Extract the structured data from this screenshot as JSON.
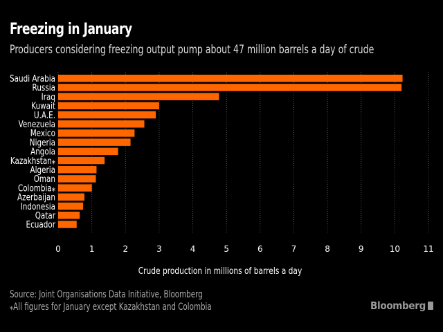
{
  "header": {
    "title": "Freezing in January",
    "subtitle": "Producers considering freezing output pump about 47 million barrels a day of crude"
  },
  "footer": {
    "source": "Source: Joint Organisations Data Initiative, Bloomberg",
    "note": "⁎All figures for January except Kazakhstan and Colombia",
    "brand": "Bloomberg"
  },
  "colors": {
    "bar": "#ff6600",
    "background": "#000000",
    "text": "#ffffff",
    "muted": "#aaaaaa"
  },
  "chart_data": {
    "type": "bar",
    "orientation": "horizontal",
    "title": "Freezing in January",
    "subtitle": "Producers considering freezing output pump about 47 million barrels a day of crude",
    "xlabel": "Crude production in millions of barrels a day",
    "ylabel": "",
    "xlim": [
      0,
      11
    ],
    "xticks": [
      "0",
      "1",
      "2",
      "3",
      "4",
      "5",
      "6",
      "7",
      "8",
      "9",
      "10",
      "11"
    ],
    "grid": true,
    "categories": [
      "Saudi Arabia",
      "Russia",
      "Iraq",
      "Kuwait",
      "U.A.E.",
      "Venezuela",
      "Mexico",
      "Nigeria",
      "Angola",
      "Kazakhstan⁎",
      "Algeria",
      "Oman",
      "Colombia⁎",
      "Azerbaijan",
      "Indonesia",
      "Qatar",
      "Ecuador"
    ],
    "values": [
      10.23,
      10.2,
      4.78,
      3.0,
      2.9,
      2.56,
      2.27,
      2.15,
      1.78,
      1.38,
      1.14,
      1.12,
      1.0,
      0.78,
      0.74,
      0.64,
      0.55
    ]
  }
}
